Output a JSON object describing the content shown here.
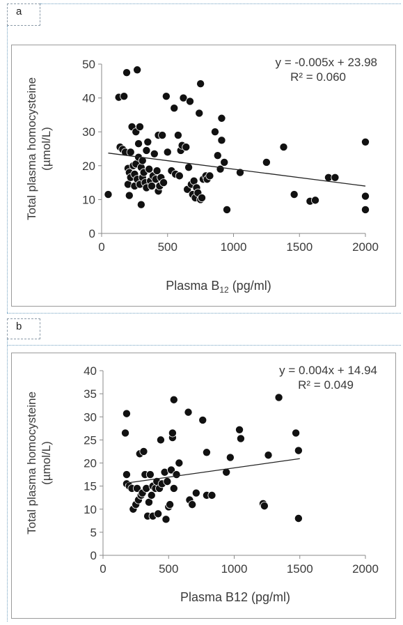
{
  "panels": [
    {
      "label": "a"
    },
    {
      "label": "b"
    }
  ],
  "chart_data": [
    {
      "type": "scatter",
      "title": "",
      "xlabel": "Plasma B",
      "xlabel_sub": "12",
      "xlabel_suffix": " (pg/ml)",
      "ylabel_line1": "Total plasma homocysteine",
      "ylabel_line2": "(µmol/L)",
      "equation": "y = -0.005x + 23.98",
      "r_squared": "R² = 0.060",
      "xlim": [
        0,
        2000
      ],
      "ylim": [
        0,
        50
      ],
      "xticks": [
        "0",
        "500",
        "1000",
        "1500",
        "2000"
      ],
      "yticks": [
        "0",
        "10",
        "20",
        "30",
        "40",
        "50"
      ],
      "xtick_values": [
        0,
        500,
        1000,
        1500,
        2000
      ],
      "ytick_values": [
        0,
        10,
        20,
        30,
        40,
        50
      ],
      "trendline": {
        "slope": -0.005,
        "intercept": 23.98,
        "x_start": 50,
        "x_end": 2000
      },
      "points": [
        [
          50,
          11.5
        ],
        [
          130,
          40.2
        ],
        [
          140,
          25.5
        ],
        [
          160,
          24.8
        ],
        [
          170,
          40.5
        ],
        [
          180,
          24.0
        ],
        [
          190,
          47.5
        ],
        [
          200,
          19.2
        ],
        [
          200,
          14.5
        ],
        [
          210,
          11.2
        ],
        [
          210,
          18.0
        ],
        [
          220,
          16.5
        ],
        [
          220,
          24.0
        ],
        [
          230,
          31.5
        ],
        [
          240,
          20.0
        ],
        [
          250,
          17.5
        ],
        [
          250,
          14.0
        ],
        [
          260,
          30.0
        ],
        [
          260,
          20.5
        ],
        [
          270,
          48.3
        ],
        [
          270,
          16.0
        ],
        [
          280,
          26.5
        ],
        [
          280,
          22.5
        ],
        [
          290,
          31.5
        ],
        [
          290,
          14.5
        ],
        [
          300,
          8.5
        ],
        [
          300,
          19.5
        ],
        [
          310,
          21.5
        ],
        [
          310,
          16.5
        ],
        [
          320,
          18.0
        ],
        [
          330,
          15.0
        ],
        [
          340,
          24.5
        ],
        [
          340,
          13.5
        ],
        [
          350,
          27.0
        ],
        [
          360,
          19.0
        ],
        [
          370,
          15.5
        ],
        [
          380,
          14.0
        ],
        [
          390,
          17.0
        ],
        [
          400,
          23.5
        ],
        [
          410,
          16.0
        ],
        [
          420,
          18.5
        ],
        [
          430,
          29.0
        ],
        [
          430,
          12.5
        ],
        [
          440,
          14.0
        ],
        [
          450,
          16.5
        ],
        [
          460,
          29.0
        ],
        [
          470,
          15.0
        ],
        [
          490,
          40.5
        ],
        [
          500,
          24.0
        ],
        [
          530,
          18.5
        ],
        [
          550,
          37.0
        ],
        [
          560,
          17.5
        ],
        [
          580,
          29.0
        ],
        [
          590,
          17.0
        ],
        [
          600,
          24.5
        ],
        [
          610,
          26.0
        ],
        [
          620,
          40.0
        ],
        [
          640,
          25.5
        ],
        [
          650,
          13.0
        ],
        [
          660,
          19.5
        ],
        [
          670,
          39.0
        ],
        [
          680,
          14.5
        ],
        [
          690,
          11.5
        ],
        [
          700,
          15.5
        ],
        [
          710,
          10.5
        ],
        [
          720,
          13.5
        ],
        [
          730,
          12.0
        ],
        [
          740,
          35.5
        ],
        [
          750,
          44.2
        ],
        [
          750,
          10.0
        ],
        [
          760,
          10.5
        ],
        [
          770,
          16.0
        ],
        [
          790,
          17.0
        ],
        [
          800,
          16.0
        ],
        [
          820,
          17.0
        ],
        [
          860,
          30.0
        ],
        [
          880,
          23.0
        ],
        [
          900,
          19.0
        ],
        [
          910,
          34.0
        ],
        [
          910,
          27.5
        ],
        [
          930,
          21.0
        ],
        [
          950,
          7.0
        ],
        [
          1050,
          18.0
        ],
        [
          1250,
          21.0
        ],
        [
          1380,
          25.5
        ],
        [
          1460,
          11.5
        ],
        [
          1580,
          9.5
        ],
        [
          1620,
          9.8
        ],
        [
          1720,
          16.5
        ],
        [
          1770,
          16.5
        ],
        [
          2000,
          27.0
        ],
        [
          2000,
          11.0
        ],
        [
          2000,
          7.0
        ]
      ]
    },
    {
      "type": "scatter",
      "title": "",
      "xlabel": "Plasma B12 (pg/ml)",
      "ylabel_line1": "Total plasma homocysteine",
      "ylabel_line2": "(µmol/L)",
      "equation": "y = 0.004x + 14.94",
      "r_squared": "R² = 0.049",
      "xlim": [
        0,
        2000
      ],
      "ylim": [
        0,
        40
      ],
      "xticks": [
        "0",
        "500",
        "1000",
        "1500",
        "2000"
      ],
      "yticks": [
        "0",
        "5",
        "10",
        "15",
        "20",
        "25",
        "30",
        "35",
        "40"
      ],
      "xtick_values": [
        0,
        500,
        1000,
        1500,
        2000
      ],
      "ytick_values": [
        0,
        5,
        10,
        15,
        20,
        25,
        30,
        35,
        40
      ],
      "trendline": {
        "slope": 0.004,
        "intercept": 14.94,
        "x_start": 170,
        "x_end": 1500
      },
      "points": [
        [
          170,
          26.5
        ],
        [
          180,
          30.7
        ],
        [
          180,
          17.5
        ],
        [
          180,
          15.5
        ],
        [
          200,
          15.0
        ],
        [
          220,
          14.5
        ],
        [
          230,
          10.0
        ],
        [
          250,
          11.0
        ],
        [
          260,
          14.5
        ],
        [
          270,
          12.0
        ],
        [
          280,
          22.0
        ],
        [
          290,
          13.0
        ],
        [
          300,
          13.5
        ],
        [
          310,
          22.5
        ],
        [
          320,
          17.5
        ],
        [
          330,
          14.5
        ],
        [
          340,
          8.5
        ],
        [
          350,
          11.5
        ],
        [
          360,
          17.5
        ],
        [
          370,
          13.0
        ],
        [
          380,
          15.0
        ],
        [
          380,
          8.5
        ],
        [
          400,
          14.5
        ],
        [
          410,
          16.0
        ],
        [
          420,
          9.0
        ],
        [
          430,
          14.5
        ],
        [
          440,
          25.0
        ],
        [
          450,
          15.5
        ],
        [
          470,
          18.0
        ],
        [
          480,
          7.8
        ],
        [
          490,
          16.0
        ],
        [
          500,
          10.5
        ],
        [
          510,
          11.0
        ],
        [
          520,
          18.5
        ],
        [
          530,
          25.5
        ],
        [
          530,
          26.5
        ],
        [
          540,
          33.7
        ],
        [
          540,
          14.5
        ],
        [
          560,
          17.5
        ],
        [
          580,
          20.0
        ],
        [
          650,
          31.0
        ],
        [
          660,
          12.0
        ],
        [
          680,
          11.0
        ],
        [
          710,
          13.5
        ],
        [
          760,
          29.3
        ],
        [
          790,
          22.3
        ],
        [
          790,
          13.0
        ],
        [
          830,
          13.0
        ],
        [
          940,
          18.0
        ],
        [
          970,
          21.2
        ],
        [
          1040,
          27.2
        ],
        [
          1050,
          25.3
        ],
        [
          1220,
          11.2
        ],
        [
          1230,
          10.7
        ],
        [
          1260,
          21.7
        ],
        [
          1340,
          34.2
        ],
        [
          1470,
          26.5
        ],
        [
          1490,
          22.7
        ],
        [
          1490,
          8.0
        ]
      ]
    }
  ]
}
